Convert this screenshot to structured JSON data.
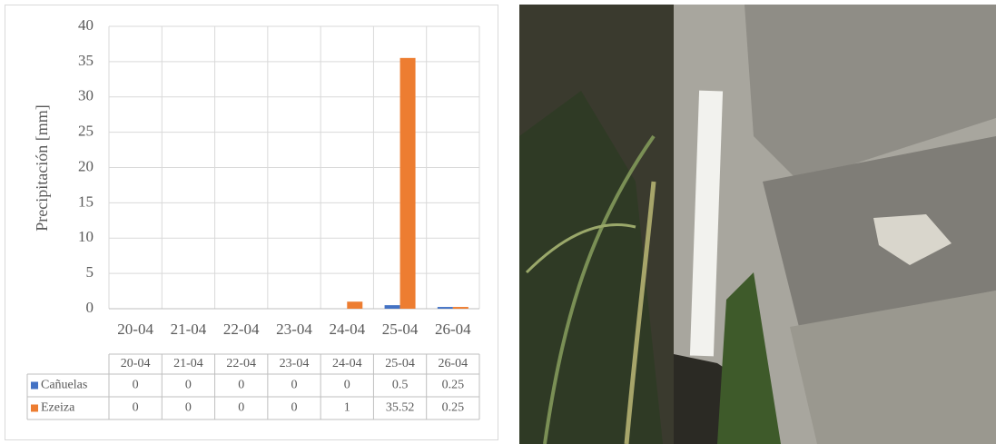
{
  "chart_data": {
    "type": "bar",
    "y_label": "Precipitación [mm]",
    "categories": [
      "20-04",
      "21-04",
      "22-04",
      "23-04",
      "24-04",
      "25-04",
      "26-04"
    ],
    "series": [
      {
        "name": "Cañuelas",
        "color": "#4472c4",
        "values": [
          0,
          0,
          0,
          0,
          0,
          0.5,
          0.25
        ]
      },
      {
        "name": "Ezeiza",
        "color": "#ed7d31",
        "values": [
          0,
          0,
          0,
          0,
          1,
          35.52,
          0.25
        ]
      }
    ],
    "ylim": [
      0,
      40
    ],
    "yticks": [
      0,
      5,
      10,
      15,
      20,
      25,
      30,
      35,
      40
    ],
    "grid": true,
    "data_table": true
  }
}
